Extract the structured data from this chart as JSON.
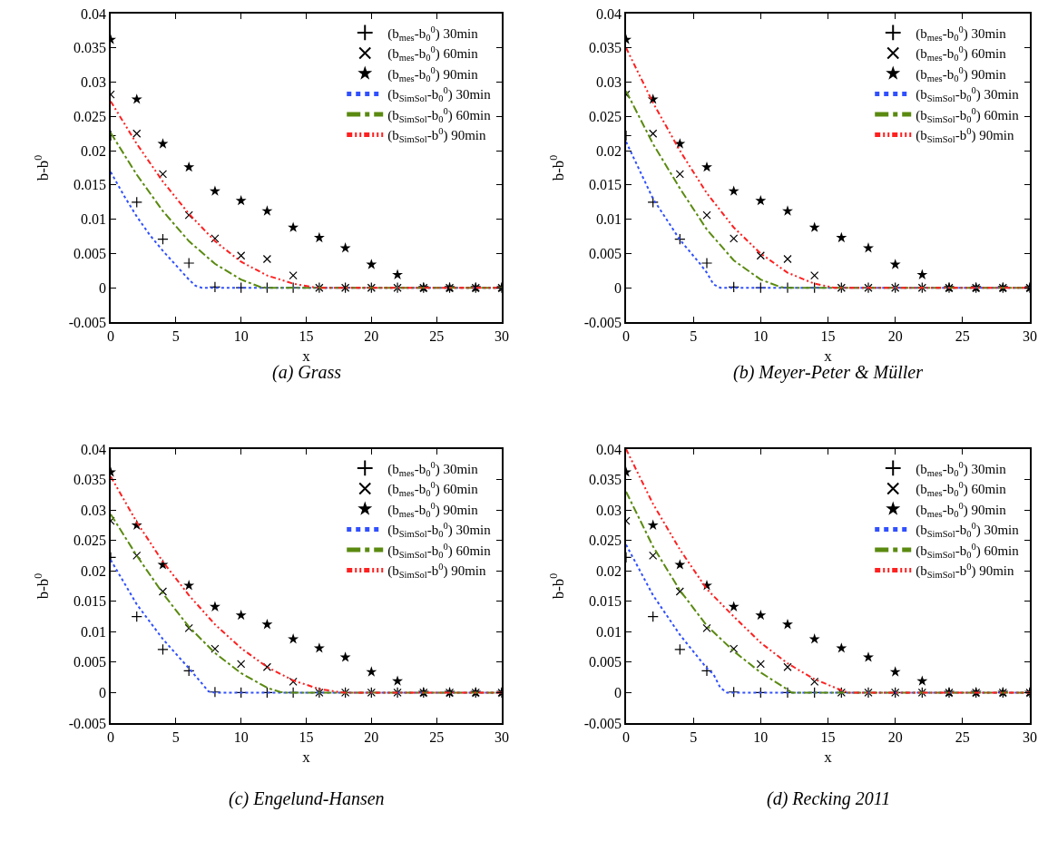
{
  "chart_data": [
    {
      "type": "line",
      "title": "(a) Grass",
      "xlabel": "x",
      "ylabel": "b-b$^{0}$",
      "xlim": [
        0,
        30
      ],
      "xticks": [
        0,
        5,
        10,
        15,
        20,
        25,
        30
      ],
      "ylim": [
        -0.005,
        0.04
      ],
      "yticks": [
        -0.005,
        0,
        0.005,
        0.01,
        0.015,
        0.02,
        0.025,
        0.03,
        0.035,
        0.04
      ],
      "legend": "top right",
      "series": [
        {
          "name": "(b$_{mes}$-b$_{0}$$^{0}$) 30min",
          "type": "scatter",
          "marker": "cross",
          "color": "#000000",
          "x": [
            0,
            2,
            4,
            6,
            8,
            10,
            12,
            14,
            16,
            18,
            20,
            22,
            24,
            26,
            28,
            30
          ],
          "values": [
            0.0222,
            0.0125,
            0.0071,
            0.0036,
            0.0001,
            0,
            0,
            0,
            0,
            0,
            0,
            0,
            0,
            0,
            0,
            0
          ]
        },
        {
          "name": "(b$_{mes}$-b$_{0}$$^{0}$) 60min",
          "type": "scatter",
          "marker": "x",
          "color": "#000000",
          "x": [
            0,
            2,
            4,
            6,
            8,
            10,
            12,
            14,
            16,
            18,
            20,
            22,
            24,
            26,
            28,
            30
          ],
          "values": [
            0.0282,
            0.0225,
            0.0166,
            0.0106,
            0.0072,
            0.0047,
            0.0042,
            0.0018,
            0,
            0,
            0,
            0,
            0,
            0,
            0,
            0
          ]
        },
        {
          "name": "(b$_{mes}$-b$_{0}$$^{0}$) 90min",
          "type": "scatter",
          "marker": "star",
          "color": "#000000",
          "x": [
            0,
            2,
            4,
            6,
            8,
            10,
            12,
            14,
            16,
            18,
            20,
            22,
            24,
            26,
            28,
            30
          ],
          "values": [
            0.0362,
            0.0275,
            0.021,
            0.0176,
            0.0141,
            0.0127,
            0.0112,
            0.0088,
            0.0073,
            0.0058,
            0.0034,
            0.0019,
            0,
            0,
            0,
            0
          ]
        },
        {
          "name": "(b$_{SimSol}$-b$_{0}$$^{0}$) 30min",
          "line_style": "dotted",
          "color": "#3050ff",
          "x": [
            0,
            1,
            2,
            3,
            4,
            5,
            6,
            6.5,
            7,
            30
          ],
          "values": [
            0.0169,
            0.0135,
            0.0104,
            0.0077,
            0.0054,
            0.0033,
            0.0012,
            0.0003,
            0,
            0
          ]
        },
        {
          "name": "(b$_{SimSol}$-b$_{0}$$^{0}$) 60min",
          "line_style": "dashdot",
          "color": "#5a8a10",
          "x": [
            0,
            2,
            4,
            6,
            8,
            10,
            11.5,
            12,
            30
          ],
          "values": [
            0.0226,
            0.0165,
            0.0112,
            0.0068,
            0.0035,
            0.0012,
            0.0001,
            0,
            0
          ]
        },
        {
          "name": "(b$_{SimSol}$-b$^{0}$) 90min",
          "line_style": "dashdotdot",
          "color": "#ff2020",
          "x": [
            0,
            2,
            4,
            6,
            8,
            10,
            12,
            14,
            15.5,
            16,
            30
          ],
          "values": [
            0.0272,
            0.021,
            0.0155,
            0.0108,
            0.0068,
            0.0038,
            0.0018,
            0.0006,
            0.0001,
            0,
            0
          ]
        }
      ]
    },
    {
      "type": "line",
      "title": "(b) Meyer-Peter & Müller",
      "xlabel": "x",
      "ylabel": "b-b$^{0}$",
      "xlim": [
        0,
        30
      ],
      "xticks": [
        0,
        5,
        10,
        15,
        20,
        25,
        30
      ],
      "ylim": [
        -0.005,
        0.04
      ],
      "yticks": [
        -0.005,
        0,
        0.005,
        0.01,
        0.015,
        0.02,
        0.025,
        0.03,
        0.035,
        0.04
      ],
      "legend": "top right",
      "series": [
        {
          "name": "(b$_{mes}$-b$_{0}$$^{0}$) 30min",
          "type": "scatter",
          "marker": "cross",
          "color": "#000000",
          "x": [
            0,
            2,
            4,
            6,
            8,
            10,
            12,
            14,
            16,
            18,
            20,
            22,
            24,
            26,
            28,
            30
          ],
          "values": [
            0.0222,
            0.0125,
            0.0071,
            0.0036,
            0.0001,
            0,
            0,
            0,
            0,
            0,
            0,
            0,
            0,
            0,
            0,
            0
          ]
        },
        {
          "name": "(b$_{mes}$-b$_{0}$$^{0}$) 60min",
          "type": "scatter",
          "marker": "x",
          "color": "#000000",
          "x": [
            0,
            2,
            4,
            6,
            8,
            10,
            12,
            14,
            16,
            18,
            20,
            22,
            24,
            26,
            28,
            30
          ],
          "values": [
            0.0282,
            0.0225,
            0.0166,
            0.0106,
            0.0072,
            0.0047,
            0.0042,
            0.0018,
            0,
            0,
            0,
            0,
            0,
            0,
            0,
            0
          ]
        },
        {
          "name": "(b$_{mes}$-b$_{0}$$^{0}$) 90min",
          "type": "scatter",
          "marker": "star",
          "color": "#000000",
          "x": [
            0,
            2,
            4,
            6,
            8,
            10,
            12,
            14,
            16,
            18,
            20,
            22,
            24,
            26,
            28,
            30
          ],
          "values": [
            0.0362,
            0.0275,
            0.021,
            0.0176,
            0.0141,
            0.0127,
            0.0112,
            0.0088,
            0.0073,
            0.0058,
            0.0034,
            0.0019,
            0,
            0,
            0,
            0
          ]
        },
        {
          "name": "(b$_{SimSol}$-b$_{0}$$^{0}$) 30min",
          "line_style": "dotted",
          "color": "#3050ff",
          "x": [
            0,
            2,
            4,
            5.5,
            6,
            6.5,
            7,
            30
          ],
          "values": [
            0.0213,
            0.013,
            0.007,
            0.0035,
            0.0022,
            0.0005,
            0,
            0
          ]
        },
        {
          "name": "(b$_{SimSol}$-b$_{0}$$^{0}$) 60min",
          "line_style": "dashdot",
          "color": "#5a8a10",
          "x": [
            0,
            2,
            4,
            6,
            8,
            10,
            11.5,
            12,
            30
          ],
          "values": [
            0.0287,
            0.021,
            0.0145,
            0.0085,
            0.004,
            0.0012,
            0.0001,
            0,
            0
          ]
        },
        {
          "name": "(b$_{SimSol}$-b$^{0}$) 90min",
          "line_style": "dashdotdot",
          "color": "#ff2020",
          "x": [
            0,
            2,
            4,
            6,
            8,
            10,
            12,
            14,
            15.5,
            30
          ],
          "values": [
            0.035,
            0.027,
            0.02,
            0.0138,
            0.0088,
            0.005,
            0.0022,
            0.0006,
            0,
            0
          ]
        }
      ]
    },
    {
      "type": "line",
      "title": "(c) Engelund-Hansen",
      "xlabel": "x",
      "ylabel": "b-b$^{0}$",
      "xlim": [
        0,
        30
      ],
      "xticks": [
        0,
        5,
        10,
        15,
        20,
        25,
        30
      ],
      "ylim": [
        -0.005,
        0.04
      ],
      "yticks": [
        -0.005,
        0,
        0.005,
        0.01,
        0.015,
        0.02,
        0.025,
        0.03,
        0.035,
        0.04
      ],
      "legend": "top right",
      "series": [
        {
          "name": "(b$_{mes}$-b$_{0}$$^{0}$) 30min",
          "type": "scatter",
          "marker": "cross",
          "color": "#000000",
          "x": [
            0,
            2,
            4,
            6,
            8,
            10,
            12,
            14,
            16,
            18,
            20,
            22,
            24,
            26,
            28,
            30
          ],
          "values": [
            0.0222,
            0.0125,
            0.0071,
            0.0036,
            0.0001,
            0,
            0,
            0,
            0,
            0,
            0,
            0,
            0,
            0,
            0,
            0
          ]
        },
        {
          "name": "(b$_{mes}$-b$_{0}$$^{0}$) 60min",
          "type": "scatter",
          "marker": "x",
          "color": "#000000",
          "x": [
            0,
            2,
            4,
            6,
            8,
            10,
            12,
            14,
            16,
            18,
            20,
            22,
            24,
            26,
            28,
            30
          ],
          "values": [
            0.0282,
            0.0225,
            0.0166,
            0.0106,
            0.0072,
            0.0047,
            0.0042,
            0.0018,
            0,
            0,
            0,
            0,
            0,
            0,
            0,
            0
          ]
        },
        {
          "name": "(b$_{mes}$-b$_{0}$$^{0}$) 90min",
          "type": "scatter",
          "marker": "star",
          "color": "#000000",
          "x": [
            0,
            2,
            4,
            6,
            8,
            10,
            12,
            14,
            16,
            18,
            20,
            22,
            24,
            26,
            28,
            30
          ],
          "values": [
            0.0362,
            0.0275,
            0.021,
            0.0176,
            0.0141,
            0.0127,
            0.0112,
            0.0088,
            0.0073,
            0.0058,
            0.0034,
            0.0019,
            0,
            0,
            0,
            0
          ]
        },
        {
          "name": "(b$_{SimSol}$-b$_{0}$$^{0}$) 30min",
          "line_style": "dotted",
          "color": "#3050ff",
          "x": [
            0,
            2,
            4,
            6,
            7,
            7.5,
            8,
            30
          ],
          "values": [
            0.0218,
            0.0145,
            0.0088,
            0.004,
            0.0015,
            0.0002,
            0,
            0
          ]
        },
        {
          "name": "(b$_{SimSol}$-b$_{0}$$^{0}$) 60min",
          "line_style": "dashdot",
          "color": "#5a8a10",
          "x": [
            0,
            2,
            4,
            6,
            8,
            10,
            12,
            13,
            13.5,
            30
          ],
          "values": [
            0.0293,
            0.0225,
            0.0163,
            0.0108,
            0.0065,
            0.0032,
            0.0008,
            0.0001,
            0,
            0
          ]
        },
        {
          "name": "(b$_{SimSol}$-b$^{0}$) 90min",
          "line_style": "dashdotdot",
          "color": "#ff2020",
          "x": [
            0,
            2,
            4,
            6,
            8,
            10,
            12,
            14,
            16,
            17.5,
            18,
            30
          ],
          "values": [
            0.0355,
            0.028,
            0.0215,
            0.016,
            0.0112,
            0.0073,
            0.0042,
            0.002,
            0.0006,
            0.0001,
            0,
            0
          ]
        }
      ]
    },
    {
      "type": "line",
      "title": "(d) Recking 2011",
      "xlabel": "x",
      "ylabel": "b-b$^{0}$",
      "xlim": [
        0,
        30
      ],
      "xticks": [
        0,
        5,
        10,
        15,
        20,
        25,
        30
      ],
      "ylim": [
        -0.005,
        0.04
      ],
      "yticks": [
        -0.005,
        0,
        0.005,
        0.01,
        0.015,
        0.02,
        0.025,
        0.03,
        0.035,
        0.04
      ],
      "legend": "top right",
      "series": [
        {
          "name": "(b$_{mes}$-b$_{0}$$^{0}$) 30min",
          "type": "scatter",
          "marker": "cross",
          "color": "#000000",
          "x": [
            0,
            2,
            4,
            6,
            8,
            10,
            12,
            14,
            16,
            18,
            20,
            22,
            24,
            26,
            28,
            30
          ],
          "values": [
            0.0222,
            0.0125,
            0.0071,
            0.0036,
            0.0001,
            0,
            0,
            0,
            0,
            0,
            0,
            0,
            0,
            0,
            0,
            0
          ]
        },
        {
          "name": "(b$_{mes}$-b$_{0}$$^{0}$) 60min",
          "type": "scatter",
          "marker": "x",
          "color": "#000000",
          "x": [
            0,
            2,
            4,
            6,
            8,
            10,
            12,
            14,
            16,
            18,
            20,
            22,
            24,
            26,
            28,
            30
          ],
          "values": [
            0.0282,
            0.0225,
            0.0166,
            0.0106,
            0.0072,
            0.0047,
            0.0042,
            0.0018,
            0,
            0,
            0,
            0,
            0,
            0,
            0,
            0
          ]
        },
        {
          "name": "(b$_{mes}$-b$_{0}$$^{0}$) 90min",
          "type": "scatter",
          "marker": "star",
          "color": "#000000",
          "x": [
            0,
            2,
            4,
            6,
            8,
            10,
            12,
            14,
            16,
            18,
            20,
            22,
            24,
            26,
            28,
            30
          ],
          "values": [
            0.0362,
            0.0275,
            0.021,
            0.0176,
            0.0141,
            0.0127,
            0.0112,
            0.0088,
            0.0073,
            0.0058,
            0.0034,
            0.0019,
            0,
            0,
            0,
            0
          ]
        },
        {
          "name": "(b$_{SimSol}$-b$_{0}$$^{0}$) 30min",
          "line_style": "dotted",
          "color": "#3050ff",
          "x": [
            0,
            2,
            4,
            6,
            6.5,
            7,
            7.5,
            30
          ],
          "values": [
            0.0243,
            0.016,
            0.0095,
            0.004,
            0.003,
            0.0008,
            0,
            0
          ]
        },
        {
          "name": "(b$_{SimSol}$-b$_{0}$$^{0}$) 60min",
          "line_style": "dashdot",
          "color": "#5a8a10",
          "x": [
            0,
            2,
            4,
            6,
            8,
            10,
            12,
            12.3,
            30
          ],
          "values": [
            0.033,
            0.024,
            0.0168,
            0.011,
            0.0068,
            0.0033,
            0.0005,
            0,
            0
          ]
        },
        {
          "name": "(b$_{SimSol}$-b$^{0}$) 90min",
          "line_style": "dashdotdot",
          "color": "#ff2020",
          "x": [
            0,
            2,
            4,
            6,
            8,
            10,
            12,
            14,
            16,
            16.5,
            30
          ],
          "values": [
            0.04,
            0.031,
            0.0235,
            0.017,
            0.0125,
            0.0082,
            0.0048,
            0.0022,
            0.0004,
            0,
            0
          ]
        }
      ]
    }
  ]
}
